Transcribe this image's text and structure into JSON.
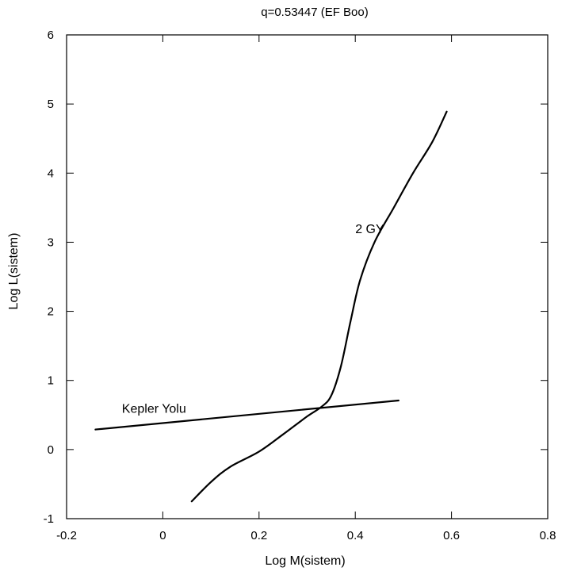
{
  "chart_data": {
    "type": "line",
    "title": "q=0.53447 (EF Boo)",
    "xlabel": "Log M(sistem)",
    "ylabel": "Log L(sistem)",
    "xlim": [
      -0.2,
      0.8
    ],
    "ylim": [
      -1,
      6
    ],
    "x_ticks": [
      -0.2,
      0,
      0.2,
      0.4,
      0.6,
      0.8
    ],
    "x_tick_labels": [
      "-0.2",
      "0",
      "0.2",
      "0.4",
      "0.6",
      "0.8"
    ],
    "y_ticks": [
      -1,
      0,
      1,
      2,
      3,
      4,
      5,
      6
    ],
    "y_tick_labels": [
      "-1",
      "0",
      "1",
      "2",
      "3",
      "4",
      "5",
      "6"
    ],
    "grid": false,
    "series": [
      {
        "name": "Kepler Yolu",
        "x": [
          -0.14,
          0.49
        ],
        "y": [
          0.29,
          0.71
        ]
      },
      {
        "name": "2 GY",
        "x": [
          0.06,
          0.1,
          0.14,
          0.2,
          0.25,
          0.3,
          0.33,
          0.35,
          0.37,
          0.39,
          0.41,
          0.44,
          0.48,
          0.52,
          0.56,
          0.59
        ],
        "y": [
          -0.75,
          -0.47,
          -0.25,
          -0.03,
          0.22,
          0.48,
          0.62,
          0.78,
          1.2,
          1.85,
          2.45,
          3.0,
          3.5,
          4.0,
          4.45,
          4.89
        ]
      }
    ],
    "annotations": [
      {
        "text": "Kepler Yolu",
        "x": -0.085,
        "y": 0.6
      },
      {
        "text": "2 GY",
        "x": 0.4,
        "y": 3.2
      }
    ]
  }
}
